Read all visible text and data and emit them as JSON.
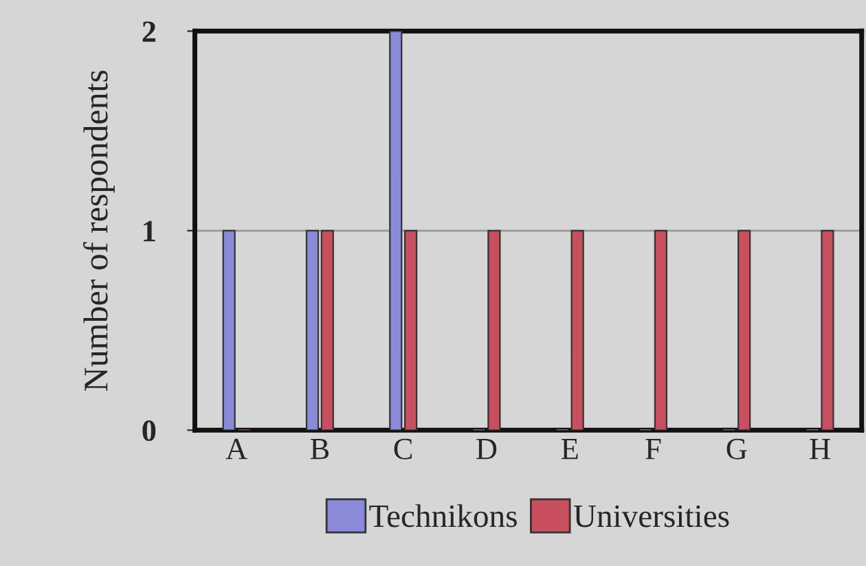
{
  "chart_data": {
    "type": "bar",
    "ylabel": "Number of respondents",
    "categories": [
      "A",
      "B",
      "C",
      "D",
      "E",
      "F",
      "G",
      "H"
    ],
    "series": [
      {
        "name": "Technikons",
        "color": "#8a8ad8",
        "values": [
          1,
          1,
          2,
          0,
          0,
          0,
          0,
          0
        ]
      },
      {
        "name": "Universities",
        "color": "#c8505e",
        "values": [
          0,
          1,
          1,
          1,
          1,
          1,
          1,
          1
        ]
      }
    ],
    "ylim": [
      0,
      2
    ],
    "yticks": [
      0,
      1,
      2
    ],
    "grid": "y",
    "legend": "bottom"
  }
}
